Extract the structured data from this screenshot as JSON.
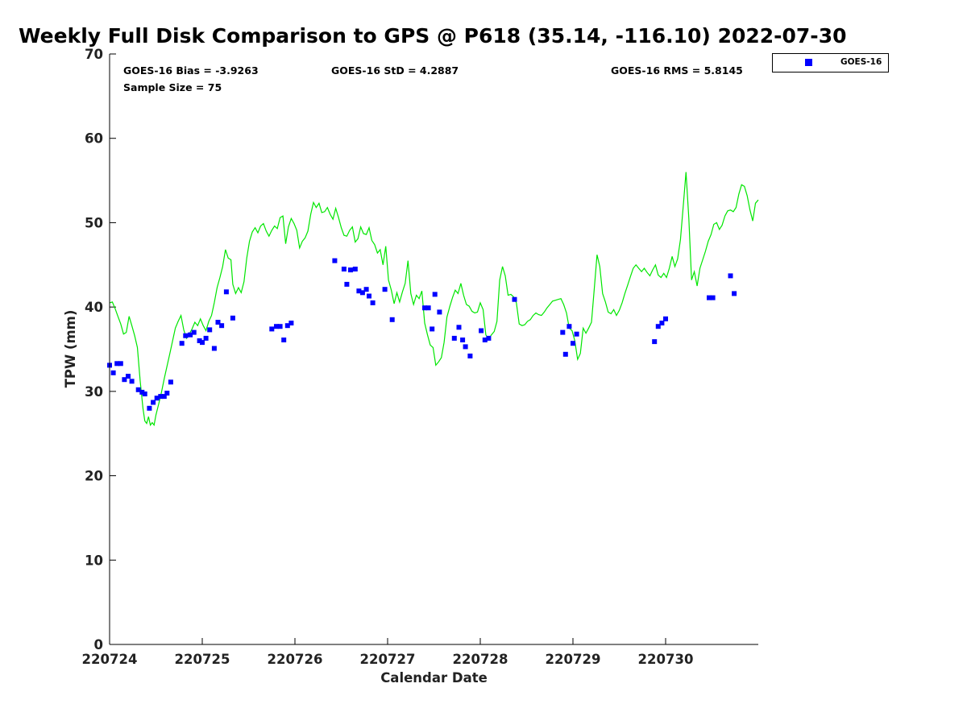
{
  "chart_data": {
    "type": "scatter",
    "title": "Weekly Full Disk Comparison to GPS @ P618 (35.14, -116.10) 2022-07-30",
    "xlabel": "Calendar Date",
    "ylabel": "TPW (mm)",
    "xlim": [
      0,
      7.0
    ],
    "ylim": [
      0,
      70
    ],
    "x_ticks": [
      0,
      1,
      2,
      3,
      4,
      5,
      6
    ],
    "x_tick_labels": [
      "220724",
      "220725",
      "220726",
      "220727",
      "220728",
      "220729",
      "220730"
    ],
    "y_ticks": [
      0,
      10,
      20,
      30,
      40,
      50,
      60,
      70
    ],
    "y_tick_labels": [
      "0",
      "10",
      "20",
      "30",
      "40",
      "50",
      "60",
      "70"
    ],
    "stats": {
      "bias": "GOES-16 Bias = -3.9263",
      "std": "GOES-16 StD = 4.2887",
      "rms": "GOES-16 RMS = 5.8145",
      "sample": "Sample Size = 75"
    },
    "legend": {
      "label": "GOES-16",
      "placement": "top-right-outside"
    },
    "colors": {
      "goes": "#0000ff",
      "gps": "#00e600",
      "axis": "#000000"
    },
    "series": [
      {
        "name": "GPS",
        "style": "line",
        "points": [
          [
            0.0,
            40.5
          ],
          [
            0.03,
            40.6
          ],
          [
            0.06,
            39.8
          ],
          [
            0.09,
            38.9
          ],
          [
            0.12,
            38.0
          ],
          [
            0.15,
            36.8
          ],
          [
            0.18,
            37.0
          ],
          [
            0.21,
            38.9
          ],
          [
            0.24,
            37.8
          ],
          [
            0.27,
            36.6
          ],
          [
            0.3,
            35.2
          ],
          [
            0.33,
            31.3
          ],
          [
            0.36,
            28.0
          ],
          [
            0.38,
            26.5
          ],
          [
            0.4,
            26.2
          ],
          [
            0.42,
            27.0
          ],
          [
            0.44,
            26.0
          ],
          [
            0.46,
            26.3
          ],
          [
            0.48,
            26.0
          ],
          [
            0.5,
            27.2
          ],
          [
            0.53,
            28.5
          ],
          [
            0.56,
            29.9
          ],
          [
            0.59,
            31.5
          ],
          [
            0.62,
            33.0
          ],
          [
            0.65,
            34.5
          ],
          [
            0.68,
            36.0
          ],
          [
            0.71,
            37.5
          ],
          [
            0.74,
            38.3
          ],
          [
            0.77,
            39.0
          ],
          [
            0.8,
            37.3
          ],
          [
            0.83,
            36.3
          ],
          [
            0.86,
            36.8
          ],
          [
            0.89,
            37.4
          ],
          [
            0.92,
            38.2
          ],
          [
            0.95,
            37.8
          ],
          [
            0.98,
            38.6
          ],
          [
            1.01,
            37.8
          ],
          [
            1.04,
            37.2
          ],
          [
            1.07,
            38.3
          ],
          [
            1.1,
            39.0
          ],
          [
            1.13,
            40.5
          ],
          [
            1.16,
            42.3
          ],
          [
            1.19,
            43.5
          ],
          [
            1.22,
            44.8
          ],
          [
            1.25,
            46.8
          ],
          [
            1.28,
            45.8
          ],
          [
            1.31,
            45.6
          ],
          [
            1.33,
            42.7
          ],
          [
            1.36,
            41.6
          ],
          [
            1.39,
            42.3
          ],
          [
            1.42,
            41.7
          ],
          [
            1.45,
            43.0
          ],
          [
            1.48,
            45.8
          ],
          [
            1.51,
            47.8
          ],
          [
            1.54,
            48.9
          ],
          [
            1.57,
            49.4
          ],
          [
            1.6,
            48.8
          ],
          [
            1.63,
            49.6
          ],
          [
            1.66,
            49.9
          ],
          [
            1.69,
            49.0
          ],
          [
            1.72,
            48.4
          ],
          [
            1.75,
            49.1
          ],
          [
            1.78,
            49.6
          ],
          [
            1.81,
            49.3
          ],
          [
            1.84,
            50.6
          ],
          [
            1.87,
            50.8
          ],
          [
            1.9,
            47.5
          ],
          [
            1.93,
            49.5
          ],
          [
            1.96,
            50.5
          ],
          [
            1.99,
            49.9
          ],
          [
            2.02,
            49.1
          ],
          [
            2.05,
            47.0
          ],
          [
            2.08,
            47.8
          ],
          [
            2.11,
            48.2
          ],
          [
            2.14,
            49.0
          ],
          [
            2.17,
            51.0
          ],
          [
            2.2,
            52.4
          ],
          [
            2.23,
            51.8
          ],
          [
            2.26,
            52.3
          ],
          [
            2.29,
            51.2
          ],
          [
            2.32,
            51.3
          ],
          [
            2.35,
            51.8
          ],
          [
            2.38,
            51.0
          ],
          [
            2.41,
            50.4
          ],
          [
            2.44,
            51.7
          ],
          [
            2.47,
            50.6
          ],
          [
            2.5,
            49.4
          ],
          [
            2.53,
            48.5
          ],
          [
            2.56,
            48.4
          ],
          [
            2.59,
            49.1
          ],
          [
            2.62,
            49.5
          ],
          [
            2.65,
            47.7
          ],
          [
            2.68,
            48.1
          ],
          [
            2.71,
            49.5
          ],
          [
            2.74,
            48.7
          ],
          [
            2.77,
            48.6
          ],
          [
            2.8,
            49.4
          ],
          [
            2.83,
            47.9
          ],
          [
            2.86,
            47.4
          ],
          [
            2.89,
            46.4
          ],
          [
            2.92,
            46.8
          ],
          [
            2.95,
            45.0
          ],
          [
            2.98,
            47.2
          ],
          [
            3.01,
            43.2
          ],
          [
            3.04,
            42.0
          ],
          [
            3.07,
            40.4
          ],
          [
            3.1,
            41.7
          ],
          [
            3.13,
            40.6
          ],
          [
            3.16,
            41.8
          ],
          [
            3.19,
            42.8
          ],
          [
            3.22,
            45.5
          ],
          [
            3.25,
            41.6
          ],
          [
            3.28,
            40.3
          ],
          [
            3.31,
            41.4
          ],
          [
            3.34,
            41.0
          ],
          [
            3.37,
            41.9
          ],
          [
            3.4,
            38.1
          ],
          [
            3.43,
            36.7
          ],
          [
            3.46,
            35.5
          ],
          [
            3.49,
            35.2
          ],
          [
            3.52,
            33.1
          ],
          [
            3.55,
            33.5
          ],
          [
            3.58,
            34.0
          ],
          [
            3.61,
            35.8
          ],
          [
            3.64,
            38.8
          ],
          [
            3.67,
            40.0
          ],
          [
            3.7,
            41.1
          ],
          [
            3.73,
            42.0
          ],
          [
            3.76,
            41.6
          ],
          [
            3.79,
            42.8
          ],
          [
            3.82,
            41.4
          ],
          [
            3.85,
            40.3
          ],
          [
            3.88,
            40.1
          ],
          [
            3.91,
            39.5
          ],
          [
            3.94,
            39.3
          ],
          [
            3.97,
            39.4
          ],
          [
            4.0,
            40.5
          ],
          [
            4.03,
            39.7
          ],
          [
            4.06,
            36.7
          ],
          [
            4.09,
            36.2
          ],
          [
            4.12,
            36.7
          ],
          [
            4.15,
            37.1
          ],
          [
            4.18,
            38.3
          ],
          [
            4.21,
            43.2
          ],
          [
            4.24,
            44.8
          ],
          [
            4.27,
            43.7
          ],
          [
            4.3,
            41.4
          ],
          [
            4.33,
            41.5
          ],
          [
            4.36,
            41.2
          ],
          [
            4.39,
            40.5
          ],
          [
            4.42,
            38.0
          ],
          [
            4.45,
            37.8
          ],
          [
            4.48,
            37.9
          ],
          [
            4.51,
            38.3
          ],
          [
            4.54,
            38.5
          ],
          [
            4.57,
            39.0
          ],
          [
            4.6,
            39.3
          ],
          [
            4.63,
            39.1
          ],
          [
            4.66,
            39.0
          ],
          [
            4.69,
            39.4
          ],
          [
            4.72,
            39.9
          ],
          [
            4.75,
            40.3
          ],
          [
            4.78,
            40.7
          ],
          [
            4.81,
            40.8
          ],
          [
            4.84,
            40.9
          ],
          [
            4.87,
            41.0
          ],
          [
            4.9,
            40.3
          ],
          [
            4.93,
            39.3
          ],
          [
            4.96,
            37.5
          ],
          [
            4.99,
            37.2
          ],
          [
            5.02,
            36.0
          ],
          [
            5.05,
            33.8
          ],
          [
            5.08,
            34.5
          ],
          [
            5.11,
            37.5
          ],
          [
            5.14,
            36.9
          ],
          [
            5.17,
            37.5
          ],
          [
            5.2,
            38.2
          ],
          [
            5.23,
            42.2
          ],
          [
            5.26,
            46.2
          ],
          [
            5.29,
            44.8
          ],
          [
            5.32,
            41.6
          ],
          [
            5.35,
            40.6
          ],
          [
            5.38,
            39.4
          ],
          [
            5.41,
            39.2
          ],
          [
            5.44,
            39.7
          ],
          [
            5.47,
            39.0
          ],
          [
            5.5,
            39.6
          ],
          [
            5.53,
            40.5
          ],
          [
            5.56,
            41.6
          ],
          [
            5.59,
            42.6
          ],
          [
            5.62,
            43.6
          ],
          [
            5.65,
            44.6
          ],
          [
            5.68,
            45.0
          ],
          [
            5.71,
            44.6
          ],
          [
            5.74,
            44.2
          ],
          [
            5.77,
            44.6
          ],
          [
            5.8,
            44.1
          ],
          [
            5.83,
            43.7
          ],
          [
            5.86,
            44.4
          ],
          [
            5.89,
            45.0
          ],
          [
            5.92,
            43.8
          ],
          [
            5.95,
            43.5
          ],
          [
            5.98,
            44.0
          ],
          [
            6.01,
            43.5
          ],
          [
            6.04,
            44.6
          ],
          [
            6.07,
            46.0
          ],
          [
            6.1,
            44.8
          ],
          [
            6.13,
            45.7
          ],
          [
            6.16,
            48.0
          ],
          [
            6.19,
            52.0
          ],
          [
            6.22,
            56.0
          ],
          [
            6.25,
            50.5
          ],
          [
            6.28,
            43.2
          ],
          [
            6.31,
            44.2
          ],
          [
            6.34,
            42.5
          ],
          [
            6.37,
            44.6
          ],
          [
            6.4,
            45.6
          ],
          [
            6.43,
            46.6
          ],
          [
            6.46,
            47.8
          ],
          [
            6.49,
            48.6
          ],
          [
            6.52,
            49.8
          ],
          [
            6.55,
            50.0
          ],
          [
            6.58,
            49.2
          ],
          [
            6.61,
            49.7
          ],
          [
            6.64,
            50.8
          ],
          [
            6.67,
            51.4
          ],
          [
            6.7,
            51.5
          ],
          [
            6.73,
            51.3
          ],
          [
            6.76,
            51.8
          ],
          [
            6.79,
            53.4
          ],
          [
            6.82,
            54.5
          ],
          [
            6.85,
            54.3
          ],
          [
            6.88,
            53.2
          ],
          [
            6.91,
            51.5
          ],
          [
            6.94,
            50.2
          ],
          [
            6.97,
            52.3
          ],
          [
            7.0,
            52.7
          ]
        ]
      },
      {
        "name": "GOES-16",
        "style": "marker",
        "points": [
          [
            0.0,
            33.1
          ],
          [
            0.04,
            32.2
          ],
          [
            0.08,
            33.3
          ],
          [
            0.12,
            33.3
          ],
          [
            0.16,
            31.4
          ],
          [
            0.2,
            31.8
          ],
          [
            0.24,
            31.2
          ],
          [
            0.31,
            30.2
          ],
          [
            0.35,
            29.9
          ],
          [
            0.38,
            29.7
          ],
          [
            0.43,
            28.0
          ],
          [
            0.47,
            28.7
          ],
          [
            0.51,
            29.2
          ],
          [
            0.55,
            29.4
          ],
          [
            0.59,
            29.4
          ],
          [
            0.62,
            29.8
          ],
          [
            0.66,
            31.1
          ],
          [
            0.78,
            35.7
          ],
          [
            0.82,
            36.6
          ],
          [
            0.87,
            36.7
          ],
          [
            0.91,
            37.0
          ],
          [
            0.97,
            36.0
          ],
          [
            1.0,
            35.8
          ],
          [
            1.04,
            36.3
          ],
          [
            1.08,
            37.3
          ],
          [
            1.13,
            35.1
          ],
          [
            1.17,
            38.2
          ],
          [
            1.21,
            37.8
          ],
          [
            1.26,
            41.8
          ],
          [
            1.33,
            38.7
          ],
          [
            1.75,
            37.4
          ],
          [
            1.8,
            37.7
          ],
          [
            1.84,
            37.7
          ],
          [
            1.88,
            36.1
          ],
          [
            1.92,
            37.8
          ],
          [
            1.96,
            38.1
          ],
          [
            2.43,
            45.5
          ],
          [
            2.53,
            44.5
          ],
          [
            2.56,
            42.7
          ],
          [
            2.6,
            44.4
          ],
          [
            2.65,
            44.5
          ],
          [
            2.69,
            41.9
          ],
          [
            2.73,
            41.7
          ],
          [
            2.77,
            42.1
          ],
          [
            2.8,
            41.3
          ],
          [
            2.84,
            40.5
          ],
          [
            2.97,
            42.1
          ],
          [
            3.05,
            38.5
          ],
          [
            3.4,
            39.9
          ],
          [
            3.44,
            39.9
          ],
          [
            3.48,
            37.4
          ],
          [
            3.51,
            41.5
          ],
          [
            3.56,
            39.4
          ],
          [
            3.72,
            36.3
          ],
          [
            3.77,
            37.6
          ],
          [
            3.81,
            36.1
          ],
          [
            3.84,
            35.3
          ],
          [
            3.89,
            34.2
          ],
          [
            4.01,
            37.2
          ],
          [
            4.05,
            36.1
          ],
          [
            4.09,
            36.3
          ],
          [
            4.37,
            40.9
          ],
          [
            4.89,
            37.0
          ],
          [
            4.92,
            34.4
          ],
          [
            4.96,
            37.7
          ],
          [
            5.0,
            35.7
          ],
          [
            5.04,
            36.8
          ],
          [
            5.88,
            35.9
          ],
          [
            5.92,
            37.7
          ],
          [
            5.96,
            38.1
          ],
          [
            6.0,
            38.6
          ],
          [
            6.47,
            41.1
          ],
          [
            6.51,
            41.1
          ],
          [
            6.7,
            43.7
          ],
          [
            6.74,
            41.6
          ]
        ]
      }
    ]
  }
}
